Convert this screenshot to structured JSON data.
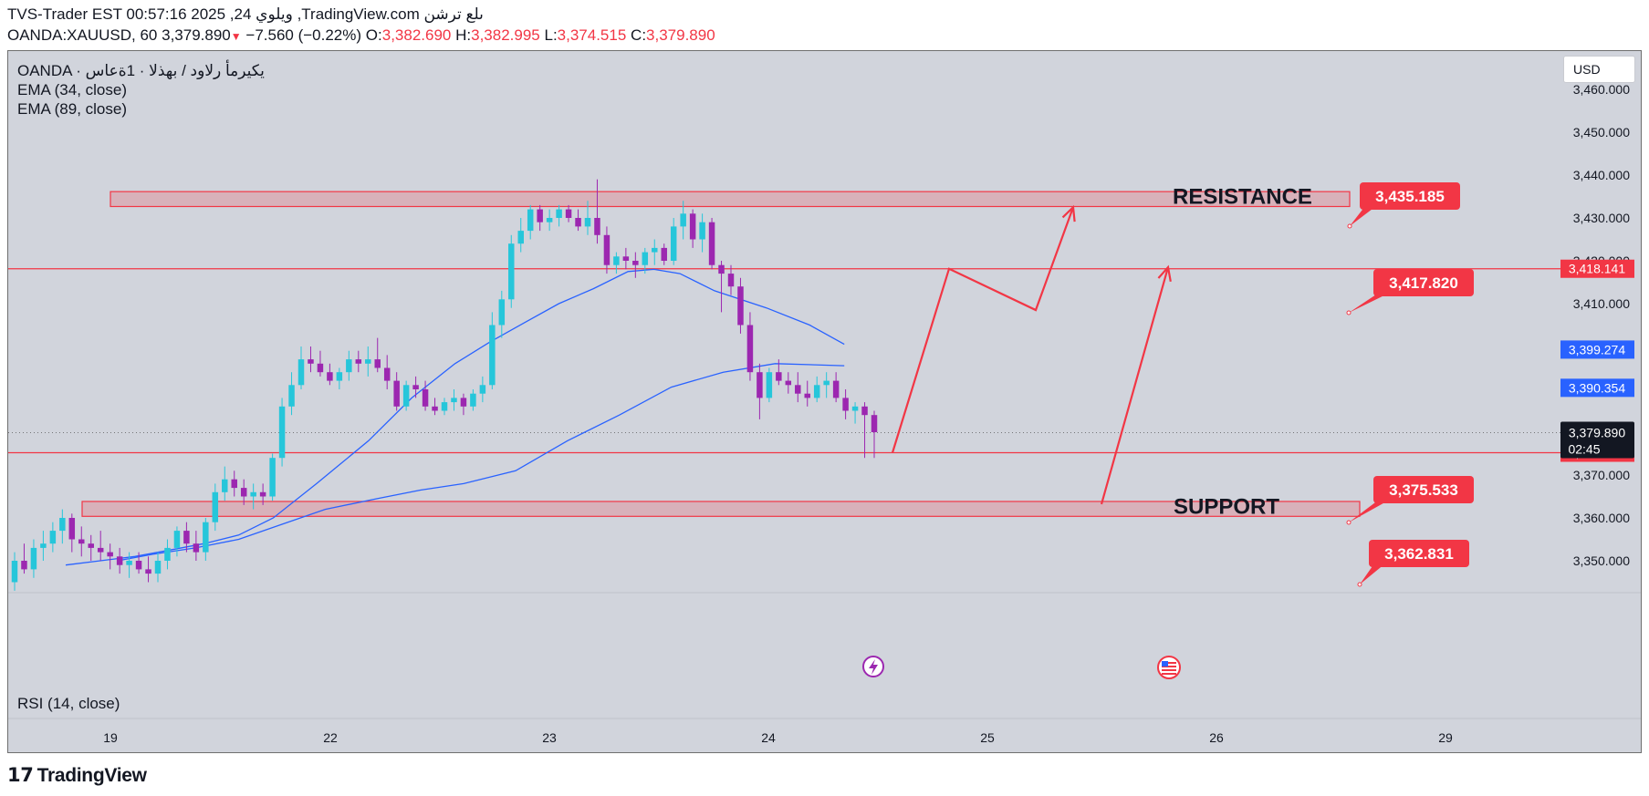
{
  "header": {
    "line1": "TVS-Trader EST 00:57:16 2025 ,24 ويلوي ,TradingView.com ىلع ترشن",
    "symbol": "OANDA:XAUUSD, 60",
    "last": "3,379.890",
    "change": "−7.560 (−0.22%)",
    "o_label": "O:",
    "o": "3,382.690",
    "h_label": "H:",
    "h": "3,382.995",
    "l_label": "L:",
    "l": "3,374.515",
    "c_label": "C:",
    "c": "3,379.890"
  },
  "legend": {
    "line1": "OANDA · يكيرمأ رلاود / بهذلا · 1ةعاس",
    "ema34": "EMA (34, close)",
    "ema89": "EMA (89, close)"
  },
  "rsi_label": "RSI (14, close)",
  "currency_button": "USD",
  "brand": "TradingView",
  "colors": {
    "background": "#d1d4dc",
    "up": "#26c6da",
    "down": "#9c27b0",
    "ema": "#2962ff",
    "annotation": "#f23645",
    "blue_tag": "#2962ff",
    "last_tag": "#131722"
  },
  "chart_data": {
    "type": "candlestick",
    "symbol": "OANDA:XAUUSD",
    "interval": "60",
    "y_ticks": [
      3350,
      3360,
      3370,
      3380,
      3390,
      3400,
      3410,
      3420,
      3430,
      3440,
      3450,
      3460
    ],
    "y_tick_labels": [
      "3,350.000",
      "3,360.000",
      "3,370.000",
      "3,380.000",
      "3,390.000",
      "3,400.000",
      "3,410.000",
      "3,420.000",
      "3,430.000",
      "3,440.000",
      "3,450.000",
      "3,460.000"
    ],
    "ylim": [
      3343,
      3466
    ],
    "x_ticks": [
      "19",
      "22",
      "23",
      "24",
      "25",
      "26",
      "29"
    ],
    "candles": [
      [
        3345,
        3352,
        3343,
        3350
      ],
      [
        3350,
        3354,
        3347,
        3348
      ],
      [
        3348,
        3355,
        3346,
        3353
      ],
      [
        3353,
        3357,
        3350,
        3354
      ],
      [
        3354,
        3359,
        3352,
        3357
      ],
      [
        3357,
        3362,
        3354,
        3360
      ],
      [
        3360,
        3361,
        3352,
        3355
      ],
      [
        3355,
        3358,
        3351,
        3354
      ],
      [
        3354,
        3356,
        3350,
        3353
      ],
      [
        3353,
        3357,
        3350,
        3352
      ],
      [
        3352,
        3354,
        3348,
        3351
      ],
      [
        3351,
        3353,
        3347,
        3349
      ],
      [
        3349,
        3352,
        3346,
        3350
      ],
      [
        3350,
        3352,
        3347,
        3348
      ],
      [
        3348,
        3351,
        3345,
        3347
      ],
      [
        3347,
        3352,
        3345,
        3350
      ],
      [
        3350,
        3355,
        3348,
        3353
      ],
      [
        3353,
        3358,
        3351,
        3357
      ],
      [
        3357,
        3359,
        3352,
        3354
      ],
      [
        3354,
        3357,
        3350,
        3352
      ],
      [
        3352,
        3360,
        3350,
        3359
      ],
      [
        3359,
        3368,
        3357,
        3366
      ],
      [
        3366,
        3372,
        3364,
        3369
      ],
      [
        3369,
        3371,
        3365,
        3367
      ],
      [
        3367,
        3369,
        3363,
        3365
      ],
      [
        3365,
        3368,
        3362,
        3366
      ],
      [
        3366,
        3368,
        3363,
        3365
      ],
      [
        3365,
        3375,
        3364,
        3374
      ],
      [
        3374,
        3388,
        3372,
        3386
      ],
      [
        3386,
        3394,
        3384,
        3391
      ],
      [
        3391,
        3400,
        3390,
        3397
      ],
      [
        3397,
        3400,
        3394,
        3396
      ],
      [
        3396,
        3399,
        3393,
        3394
      ],
      [
        3394,
        3396,
        3391,
        3392
      ],
      [
        3392,
        3395,
        3390,
        3394
      ],
      [
        3394,
        3399,
        3392,
        3397
      ],
      [
        3397,
        3399,
        3394,
        3396
      ],
      [
        3396,
        3400,
        3393,
        3397
      ],
      [
        3397,
        3402,
        3394,
        3395
      ],
      [
        3395,
        3398,
        3390,
        3392
      ],
      [
        3392,
        3394,
        3385,
        3386
      ],
      [
        3386,
        3392,
        3385,
        3391
      ],
      [
        3391,
        3393,
        3388,
        3390
      ],
      [
        3390,
        3392,
        3385,
        3386
      ],
      [
        3386,
        3388,
        3384,
        3385
      ],
      [
        3385,
        3388,
        3384,
        3387
      ],
      [
        3387,
        3390,
        3385,
        3388
      ],
      [
        3388,
        3389,
        3384,
        3386
      ],
      [
        3386,
        3390,
        3385,
        3389
      ],
      [
        3389,
        3393,
        3387,
        3391
      ],
      [
        3391,
        3408,
        3390,
        3405
      ],
      [
        3405,
        3413,
        3402,
        3411
      ],
      [
        3411,
        3426,
        3409,
        3424
      ],
      [
        3424,
        3430,
        3422,
        3427
      ],
      [
        3427,
        3433,
        3425,
        3432
      ],
      [
        3432,
        3433,
        3427,
        3429
      ],
      [
        3429,
        3432,
        3427,
        3430
      ],
      [
        3430,
        3433,
        3428,
        3432
      ],
      [
        3432,
        3433,
        3429,
        3430
      ],
      [
        3430,
        3432,
        3427,
        3428
      ],
      [
        3428,
        3434,
        3426,
        3430
      ],
      [
        3430,
        3439,
        3424,
        3426
      ],
      [
        3426,
        3428,
        3417,
        3419
      ],
      [
        3419,
        3422,
        3417,
        3421
      ],
      [
        3421,
        3423,
        3418,
        3420
      ],
      [
        3420,
        3422,
        3416,
        3419
      ],
      [
        3419,
        3423,
        3417,
        3422
      ],
      [
        3422,
        3425,
        3419,
        3423
      ],
      [
        3423,
        3424,
        3419,
        3420
      ],
      [
        3420,
        3430,
        3419,
        3428
      ],
      [
        3428,
        3434,
        3425,
        3431
      ],
      [
        3431,
        3432,
        3423,
        3425
      ],
      [
        3425,
        3431,
        3422,
        3429
      ],
      [
        3429,
        3430,
        3418,
        3419
      ],
      [
        3419,
        3420,
        3408,
        3417
      ],
      [
        3417,
        3419,
        3412,
        3414
      ],
      [
        3414,
        3416,
        3403,
        3405
      ],
      [
        3405,
        3408,
        3392,
        3394
      ],
      [
        3394,
        3396,
        3383,
        3388
      ],
      [
        3388,
        3395,
        3387,
        3394
      ],
      [
        3394,
        3397,
        3391,
        3392
      ],
      [
        3392,
        3394,
        3389,
        3391
      ],
      [
        3391,
        3394,
        3387,
        3389
      ],
      [
        3389,
        3392,
        3386,
        3388
      ],
      [
        3388,
        3393,
        3387,
        3391
      ],
      [
        3391,
        3394,
        3388,
        3392
      ],
      [
        3392,
        3394,
        3387,
        3388
      ],
      [
        3388,
        3390,
        3383,
        3385
      ],
      [
        3385,
        3387,
        3382,
        3386
      ],
      [
        3386,
        3387,
        3374,
        3384
      ],
      [
        3384,
        3385,
        3374,
        3380
      ]
    ],
    "series": [
      {
        "name": "EMA (34, close)",
        "values": [
          3349,
          3350,
          3351,
          3352.5,
          3354,
          3356,
          3360,
          3368,
          3378,
          3388,
          3396,
          3401,
          3405.5,
          3410,
          3413.5,
          3417.5,
          3418,
          3417,
          3413,
          3409,
          3405,
          3400.5
        ]
      },
      {
        "name": "EMA (89, close)",
        "values": [
          3350,
          3351.5,
          3353,
          3355,
          3358.5,
          3362,
          3364.5,
          3366.5,
          3368,
          3371,
          3378,
          3384,
          3390.5,
          3394,
          3396,
          3395.5
        ]
      }
    ],
    "ema34_x": [
      0,
      0.04,
      0.08,
      0.12,
      0.16,
      0.2,
      0.24,
      0.29,
      0.35,
      0.4,
      0.45,
      0.49,
      0.53,
      0.57,
      0.61,
      0.65,
      0.68,
      0.71,
      0.75,
      0.81,
      0.86,
      0.9
    ],
    "ema89_x": [
      0.06,
      0.1,
      0.15,
      0.2,
      0.25,
      0.3,
      0.36,
      0.41,
      0.46,
      0.52,
      0.58,
      0.64,
      0.7,
      0.76,
      0.82,
      0.9
    ],
    "zones": [
      {
        "label": "RESISTANCE",
        "from": 3433.3,
        "to": 3435.5
      },
      {
        "label": "SUPPORT",
        "from": 3361.0,
        "to": 3363.2
      }
    ],
    "level_lines": [
      3418.141,
      3375.212
    ],
    "callouts": [
      "3,435.185",
      "3,417.820",
      "3,375.533",
      "3,362.831"
    ],
    "price_tags": [
      {
        "text": "3,418.141",
        "value": 3418.141,
        "kind": "red"
      },
      {
        "text": "3,399.274",
        "value": 3399.274,
        "kind": "blue"
      },
      {
        "text": "3,390.354",
        "value": 3390.354,
        "kind": "blue"
      },
      {
        "text": "3,375.212",
        "value": 3375.212,
        "kind": "red"
      }
    ],
    "last_price": {
      "value": 3379.89,
      "text": "3,379.890",
      "countdown": "02:45"
    },
    "projection_paths": [
      [
        [
          0,
          3375.212
        ],
        [
          1,
          3418.141
        ],
        [
          2,
          3408.5
        ],
        [
          3,
          3432.5
        ]
      ],
      [
        [
          0,
          3363.2
        ],
        [
          1,
          3418.5
        ]
      ]
    ]
  }
}
